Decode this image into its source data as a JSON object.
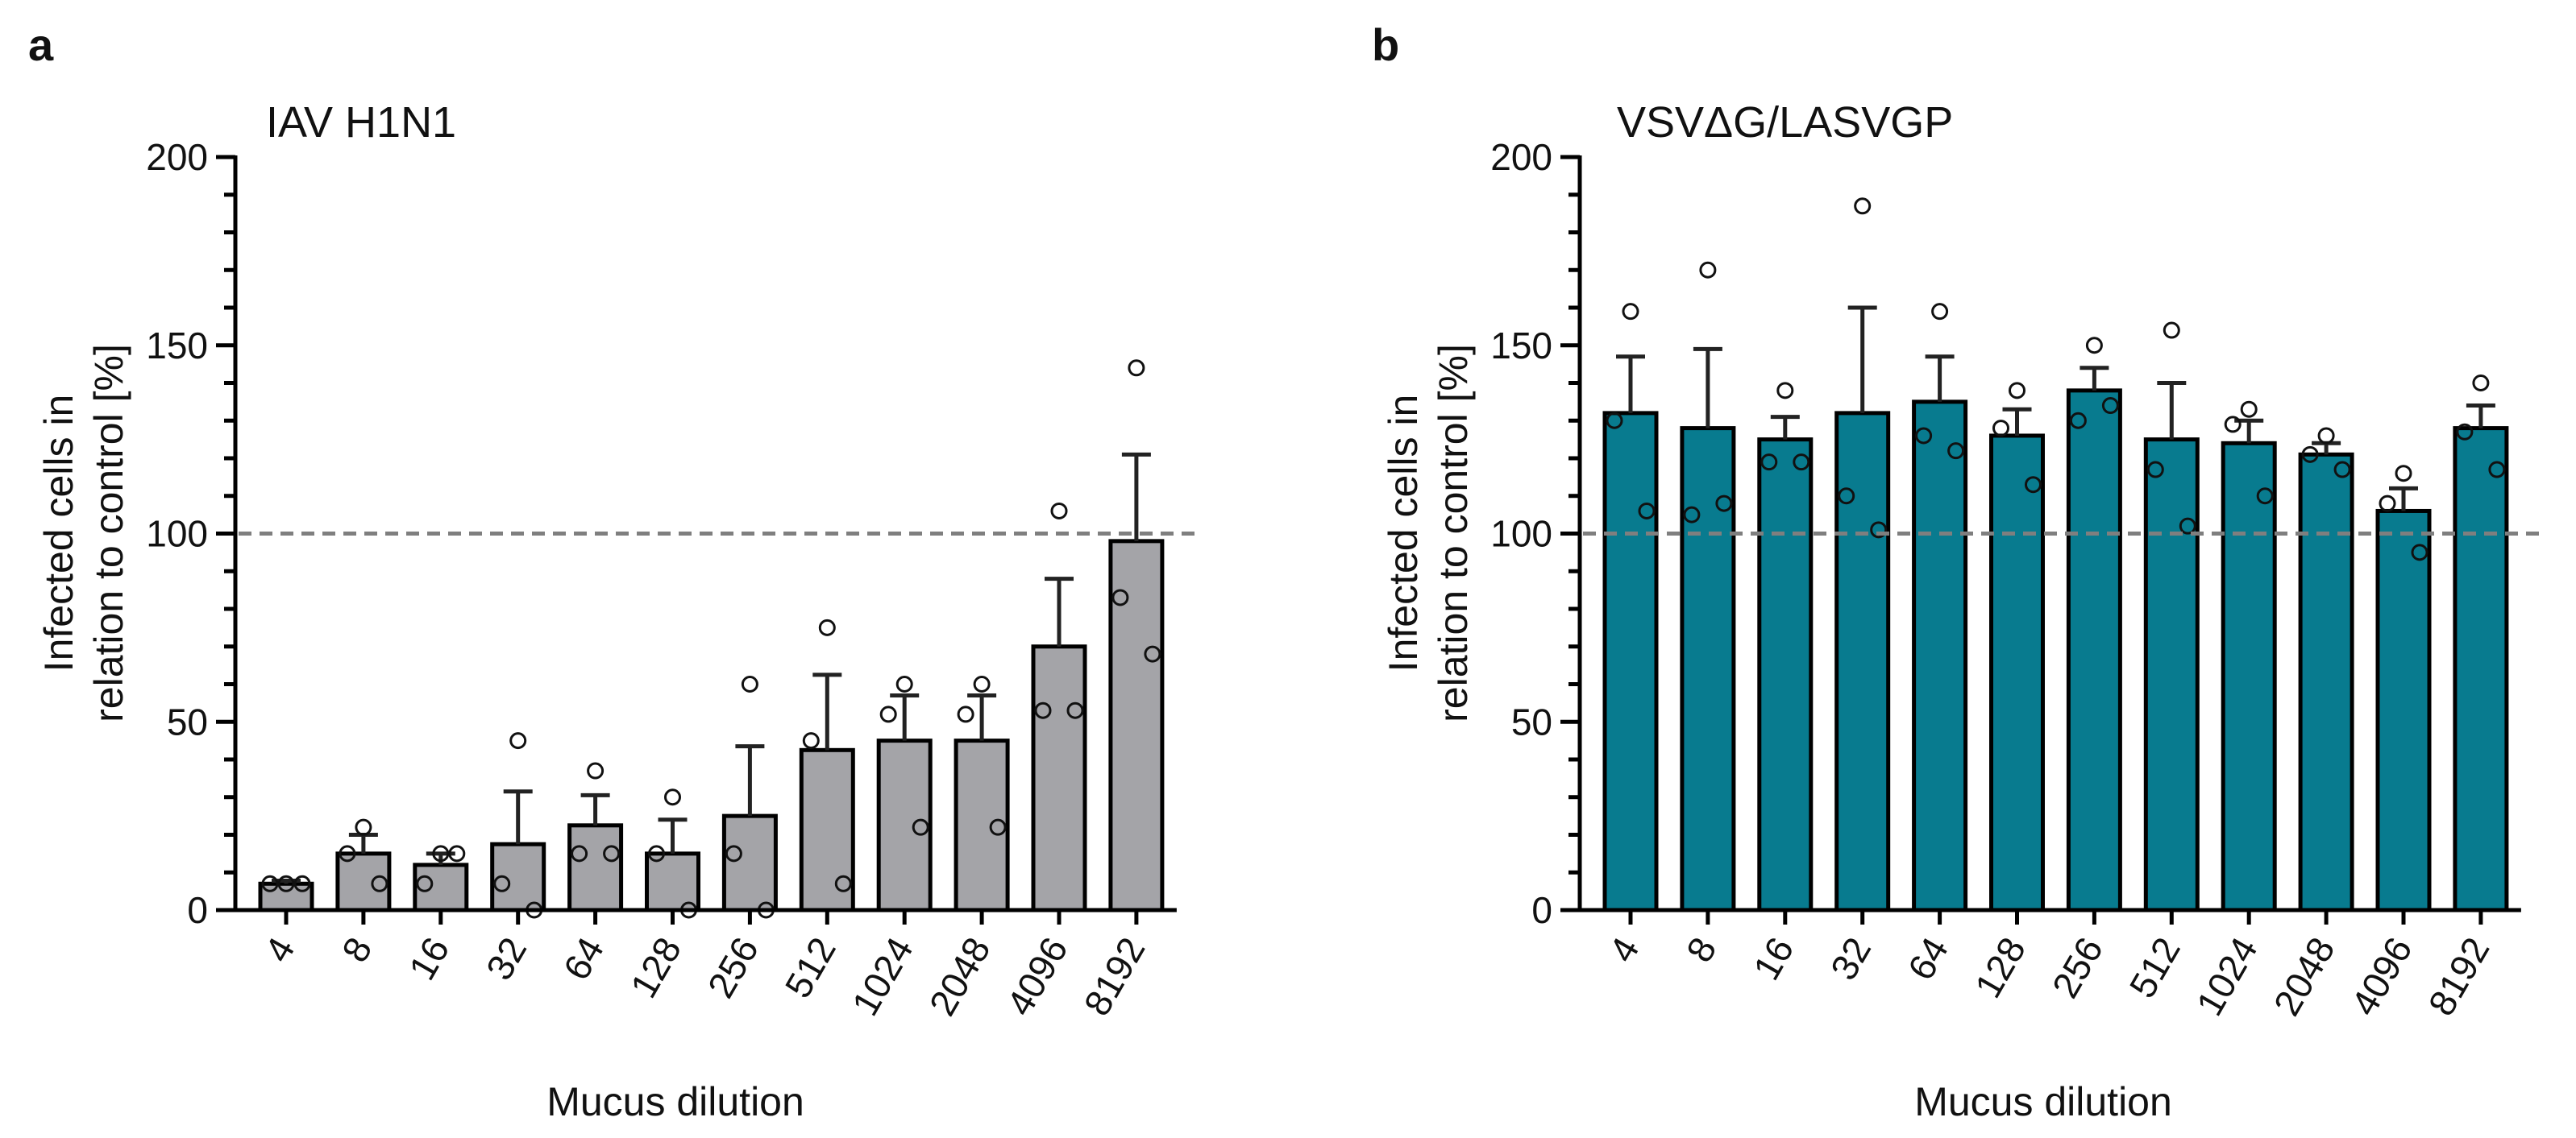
{
  "chart_data": [
    {
      "type": "bar",
      "panel": "a",
      "title": "IAV H1N1",
      "xlabel": "Mucus dilution",
      "ylabel": [
        "Infected cells in",
        "relation to control [%]"
      ],
      "ylim": [
        0,
        200
      ],
      "yticks": [
        0,
        50,
        100,
        150,
        200
      ],
      "reference_line": 100,
      "categories": [
        "4",
        "8",
        "16",
        "32",
        "64",
        "128",
        "256",
        "512",
        "1024",
        "2048",
        "4096",
        "8192"
      ],
      "values": [
        7,
        15,
        12,
        17.5,
        22.5,
        15,
        25,
        42.5,
        45,
        45,
        70,
        98
      ],
      "errors": [
        0.8,
        5,
        3,
        14,
        8,
        9,
        18.5,
        20,
        12,
        12,
        18,
        23
      ],
      "points": [
        [
          7,
          7,
          7
        ],
        [
          22,
          15,
          7
        ],
        [
          15,
          7,
          15
        ],
        [
          45,
          7,
          0
        ],
        [
          37,
          15,
          15
        ],
        [
          30,
          15,
          0
        ],
        [
          60,
          15,
          0
        ],
        [
          75,
          45,
          7
        ],
        [
          60,
          52,
          22
        ],
        [
          60,
          52,
          22
        ],
        [
          106,
          53,
          53
        ],
        [
          144,
          83,
          68
        ]
      ],
      "bar_color": "#a4a4a8"
    },
    {
      "type": "bar",
      "panel": "b",
      "title": "VSVΔG/LASVGP",
      "xlabel": "Mucus dilution",
      "ylabel": [
        "Infected cells in",
        "relation to control [%]"
      ],
      "ylim": [
        0,
        200
      ],
      "yticks": [
        0,
        50,
        100,
        150,
        200
      ],
      "reference_line": 100,
      "categories": [
        "4",
        "8",
        "16",
        "32",
        "64",
        "128",
        "256",
        "512",
        "1024",
        "2048",
        "4096",
        "8192"
      ],
      "values": [
        132,
        128,
        125,
        132,
        135,
        126,
        138,
        125,
        124,
        121,
        106,
        128
      ],
      "errors": [
        15,
        21,
        6,
        28,
        12,
        7,
        6,
        15,
        6,
        3,
        6,
        6
      ],
      "points": [
        [
          159,
          130,
          106
        ],
        [
          170,
          105,
          108
        ],
        [
          138,
          119,
          119
        ],
        [
          187,
          110,
          101
        ],
        [
          159,
          126,
          122
        ],
        [
          138,
          128,
          113
        ],
        [
          150,
          130,
          134
        ],
        [
          154,
          117,
          102
        ],
        [
          133,
          129,
          110
        ],
        [
          126,
          121,
          117
        ],
        [
          116,
          108,
          95
        ],
        [
          140,
          127,
          117
        ]
      ],
      "bar_color": "#087b8f"
    }
  ]
}
